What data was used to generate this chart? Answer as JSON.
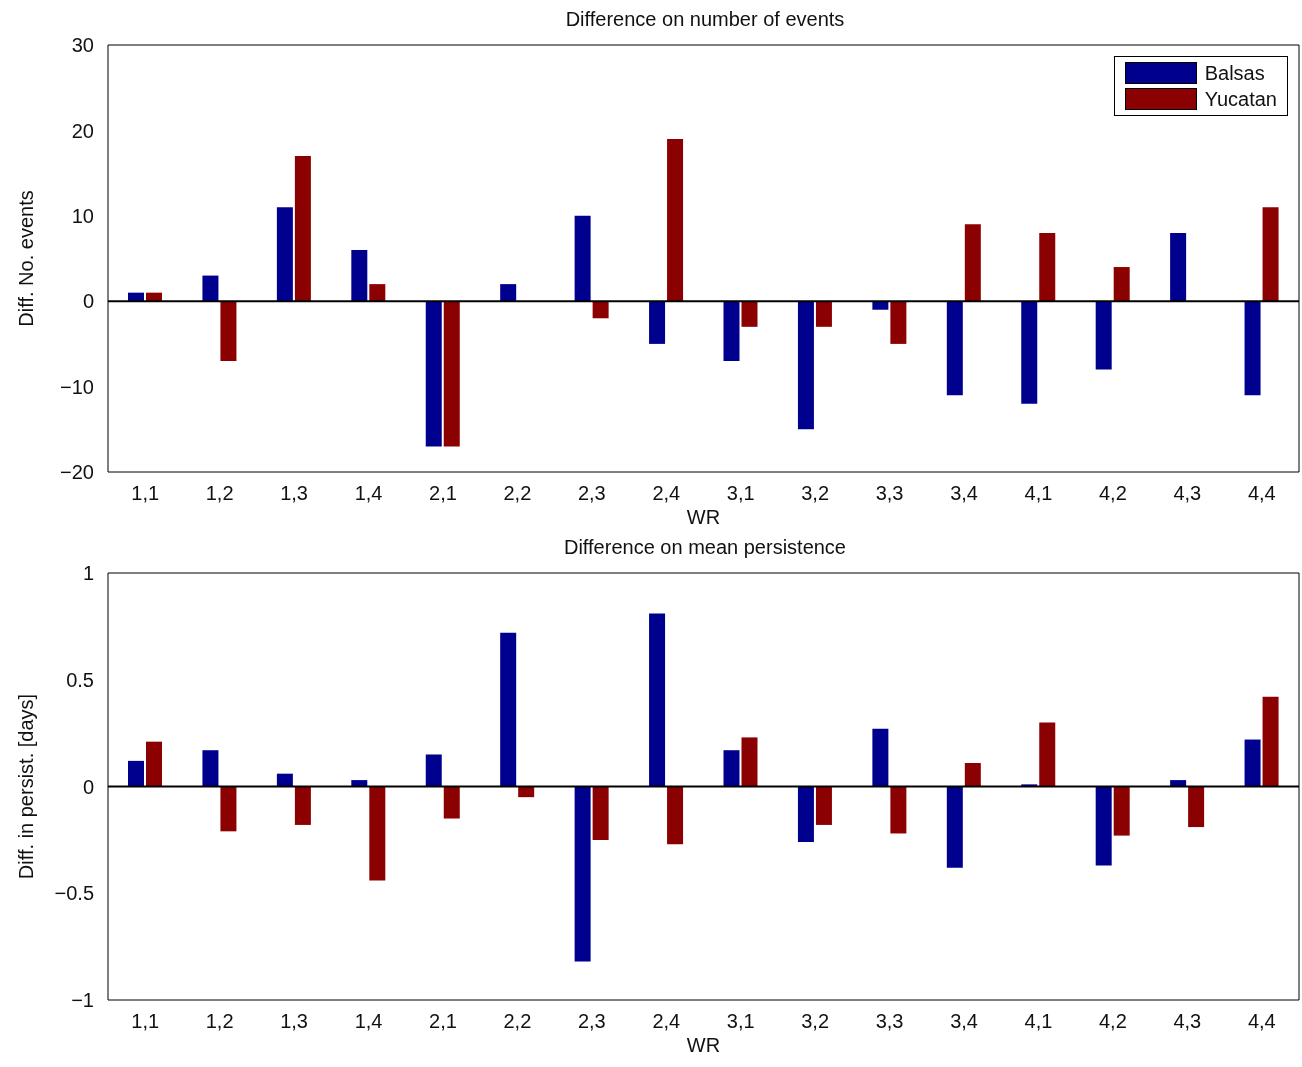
{
  "chart_data": [
    {
      "type": "bar",
      "title": "Difference on number of events",
      "xlabel": "WR",
      "ylabel": "Diff. No. events",
      "categories": [
        "1,1",
        "1,2",
        "1,3",
        "1,4",
        "2,1",
        "2,2",
        "2,3",
        "2,4",
        "3,1",
        "3,2",
        "3,3",
        "3,4",
        "4,1",
        "4,2",
        "4,3",
        "4,4"
      ],
      "series": [
        {
          "name": "Balsas",
          "color": "#00008f",
          "values": [
            1,
            3,
            11,
            6,
            -17,
            2,
            10,
            -5,
            -7,
            -15,
            -1,
            -11,
            -12,
            -8,
            8,
            -11
          ]
        },
        {
          "name": "Yucatan",
          "color": "#8b0000",
          "values": [
            1,
            -7,
            17,
            2,
            -17,
            0,
            -2,
            19,
            -3,
            -3,
            -5,
            9,
            8,
            4,
            0,
            11
          ]
        }
      ],
      "ylim": [
        -20,
        30
      ],
      "yticks": [
        -20,
        -10,
        0,
        10,
        20,
        30
      ],
      "legend": "top right"
    },
    {
      "type": "bar",
      "title": "Difference on mean persistence",
      "xlabel": "WR",
      "ylabel": "Diff.  in persist. [days]",
      "categories": [
        "1,1",
        "1,2",
        "1,3",
        "1,4",
        "2,1",
        "2,2",
        "2,3",
        "2,4",
        "3,1",
        "3,2",
        "3,3",
        "3,4",
        "4,1",
        "4,2",
        "4,3",
        "4,4"
      ],
      "series": [
        {
          "color": "#00008f",
          "values": [
            0.12,
            0.17,
            0.06,
            0.03,
            0.15,
            0.72,
            -0.82,
            0.81,
            0.17,
            -0.26,
            0.27,
            -0.38,
            0.01,
            -0.37,
            0.03,
            0.22
          ]
        },
        {
          "color": "#8b0000",
          "values": [
            0.21,
            -0.21,
            -0.18,
            -0.44,
            -0.15,
            -0.05,
            -0.25,
            -0.27,
            0.23,
            -0.18,
            -0.22,
            0.11,
            0.3,
            -0.23,
            -0.19,
            0.42
          ]
        }
      ],
      "ylim": [
        -1,
        1
      ],
      "yticks": [
        -1,
        -0.5,
        0,
        0.5,
        1
      ],
      "legend": false
    }
  ]
}
